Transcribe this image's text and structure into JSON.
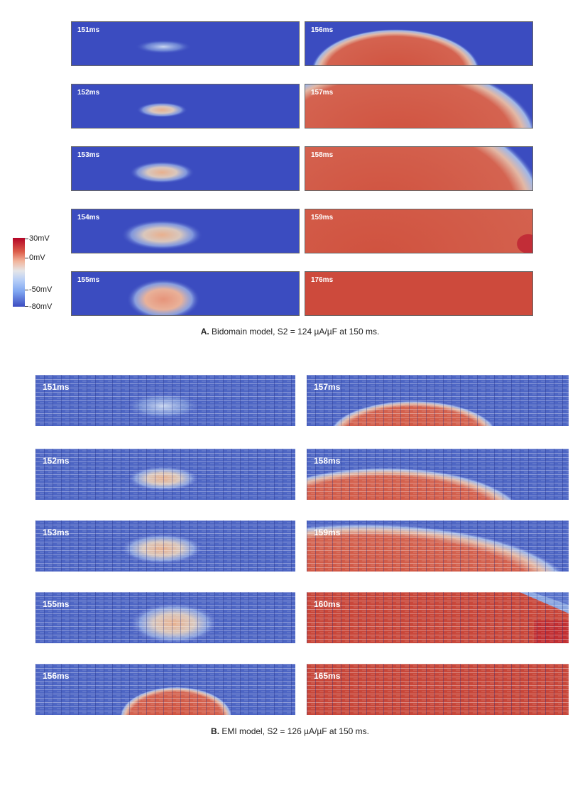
{
  "colors": {
    "rest_blue": "#3b4cc0",
    "excited_red": "#cd4a3c",
    "peak_red": "#b40426",
    "mid": "#dddcdc"
  },
  "colorbar": {
    "labels": [
      "30mV",
      "0mV",
      "-50mV",
      "-80mV"
    ]
  },
  "panel_a": {
    "caption_letter": "A.",
    "caption_text": "Bidomain model, S2 = 124 µA/µF at 150 ms.",
    "tiles": [
      {
        "label": "151ms"
      },
      {
        "label": "156ms"
      },
      {
        "label": "152ms"
      },
      {
        "label": "157ms"
      },
      {
        "label": "153ms"
      },
      {
        "label": "158ms"
      },
      {
        "label": "154ms"
      },
      {
        "label": "159ms"
      },
      {
        "label": "155ms"
      },
      {
        "label": "176ms"
      }
    ]
  },
  "panel_b": {
    "caption_letter": "B.",
    "caption_text": "EMI model, S2 = 126 µA/µF at 150 ms.",
    "tiles": [
      {
        "label": "151ms"
      },
      {
        "label": "157ms"
      },
      {
        "label": "152ms"
      },
      {
        "label": "158ms"
      },
      {
        "label": "153ms"
      },
      {
        "label": "159ms"
      },
      {
        "label": "155ms"
      },
      {
        "label": "160ms"
      },
      {
        "label": "156ms"
      },
      {
        "label": "165ms"
      }
    ]
  }
}
